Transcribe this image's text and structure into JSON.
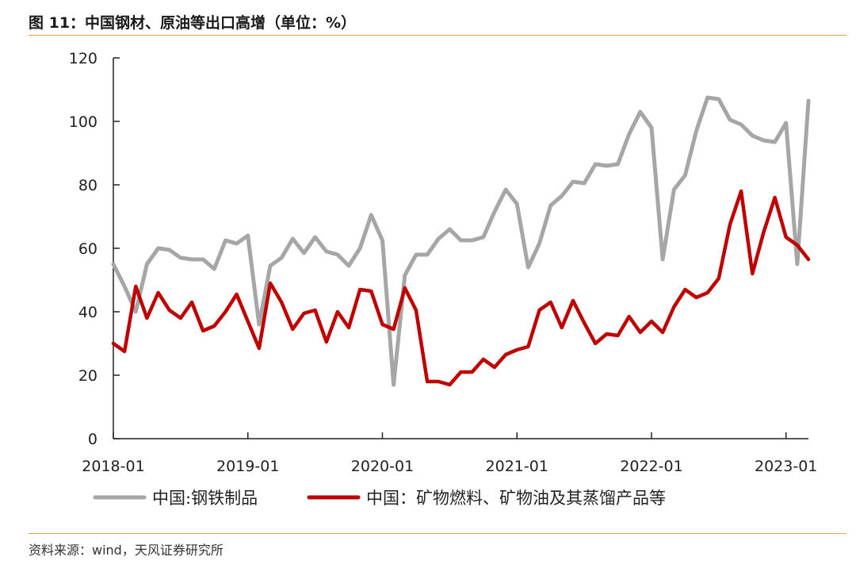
{
  "title": "图 11：中国钢材、原油等出口高增（单位：%）",
  "source": "资料来源：wind，天风证券研究所",
  "chart_data": {
    "type": "line",
    "title": "图 11：中国钢材、原油等出口高增（单位：%）",
    "ylabel": "",
    "xlabel": "",
    "ylim": [
      0,
      120
    ],
    "yticks": [
      "0",
      "20",
      "40",
      "60",
      "80",
      "100",
      "120"
    ],
    "xticks": [
      "2018-01",
      "2019-01",
      "2020-01",
      "2021-01",
      "2022-01",
      "2023-01"
    ],
    "x": [
      "2018-01",
      "2018-02",
      "2018-03",
      "2018-04",
      "2018-05",
      "2018-06",
      "2018-07",
      "2018-08",
      "2018-09",
      "2018-10",
      "2018-11",
      "2018-12",
      "2019-01",
      "2019-02",
      "2019-03",
      "2019-04",
      "2019-05",
      "2019-06",
      "2019-07",
      "2019-08",
      "2019-09",
      "2019-10",
      "2019-11",
      "2019-12",
      "2020-01",
      "2020-02",
      "2020-03",
      "2020-04",
      "2020-05",
      "2020-06",
      "2020-07",
      "2020-08",
      "2020-09",
      "2020-10",
      "2020-11",
      "2020-12",
      "2021-01",
      "2021-02",
      "2021-03",
      "2021-04",
      "2021-05",
      "2021-06",
      "2021-07",
      "2021-08",
      "2021-09",
      "2021-10",
      "2021-11",
      "2021-12",
      "2022-01",
      "2022-02",
      "2022-03",
      "2022-04",
      "2022-05",
      "2022-06",
      "2022-07",
      "2022-08",
      "2022-09",
      "2022-10",
      "2022-11",
      "2022-12",
      "2023-01",
      "2023-02",
      "2023-03"
    ],
    "series": [
      {
        "name": "中国:钢铁制品",
        "color": "#a6a6a6",
        "values": [
          55,
          48,
          40,
          55,
          60,
          59.5,
          57,
          56.5,
          56.5,
          53.5,
          62.5,
          61.5,
          64,
          36,
          54.5,
          57,
          63,
          58.5,
          63.5,
          59,
          58,
          54.5,
          60,
          70.5,
          62.5,
          17,
          51.5,
          58,
          58,
          63,
          66,
          62.5,
          62.5,
          63.5,
          71.5,
          78.5,
          74,
          54,
          61.5,
          73.5,
          76.5,
          81,
          80.5,
          86.5,
          86,
          86.5,
          96,
          103,
          98,
          56.5,
          78.5,
          83,
          97,
          107.5,
          107,
          100.5,
          99,
          95.5,
          94,
          93.5,
          99.5,
          55,
          106.5
        ]
      },
      {
        "name": "中国：矿物燃料、矿物油及其蒸馏产品等",
        "color": "#c00000",
        "values": [
          30,
          27.5,
          48,
          38,
          46,
          40.5,
          38,
          43,
          34,
          35.5,
          40,
          45.5,
          37,
          28.5,
          49,
          43,
          34.5,
          39.5,
          40.5,
          30.5,
          40,
          35,
          47,
          46.5,
          36,
          34.5,
          47.5,
          40.5,
          18,
          18,
          17,
          21,
          21,
          25,
          22.5,
          26.5,
          28,
          29,
          40.5,
          43,
          35,
          43.5,
          36.5,
          30,
          33,
          32.5,
          38.5,
          33.5,
          37,
          33.5,
          41.5,
          47,
          44.5,
          46,
          50.5,
          67.5,
          78,
          52,
          65,
          76,
          63.5,
          61,
          56.5
        ]
      }
    ],
    "grid": false,
    "legend_position": "bottom"
  }
}
